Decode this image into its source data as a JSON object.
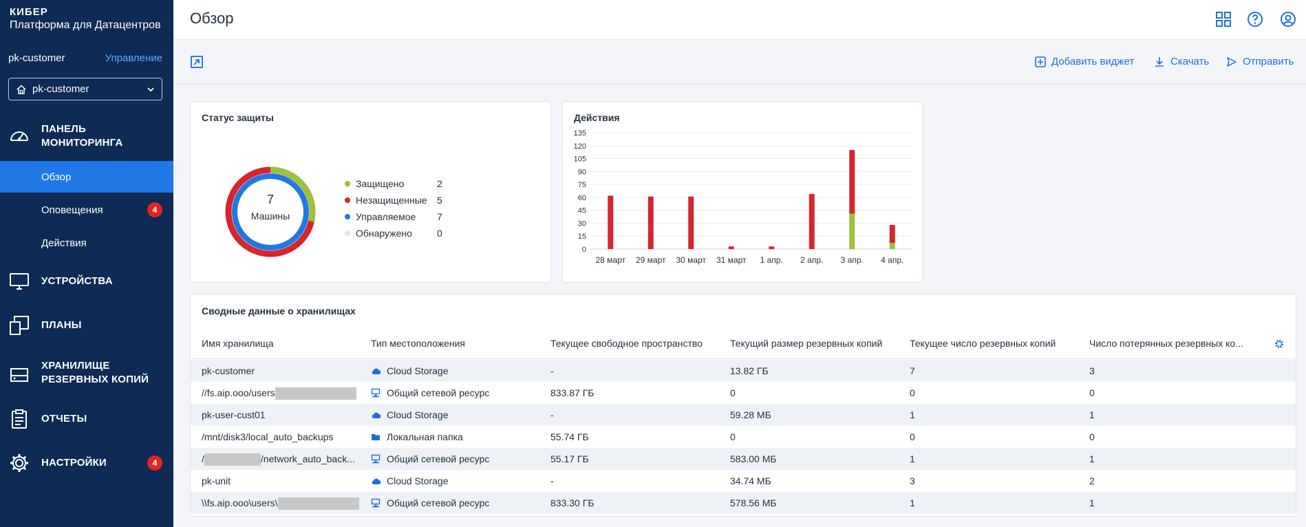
{
  "brand": {
    "top": "КИБЕР",
    "sub": "Платформа для Датацентров"
  },
  "tenant": {
    "name": "pk-customer",
    "manage": "Управление",
    "selected": "pk-customer"
  },
  "nav": {
    "dashboard": "ПАНЕЛЬ МОНИТОРИНГА",
    "overview": "Обзор",
    "alerts": "Оповещения",
    "alerts_badge": "4",
    "activities": "Действия",
    "devices": "УСТРОЙСТВА",
    "plans": "ПЛАНЫ",
    "storage": "ХРАНИЛИЩЕ РЕЗЕРВНЫХ КОПИЙ",
    "reports": "ОТЧЕТЫ",
    "settings": "НАСТРОЙКИ",
    "settings_badge": "4"
  },
  "header": {
    "title": "Обзор"
  },
  "toolbar": {
    "add_widget": "Добавить виджет",
    "download": "Скачать",
    "send": "Отправить"
  },
  "protection": {
    "title": "Статус защиты",
    "total": "7",
    "total_label": "Машины",
    "legend": [
      {
        "label": "Защищено",
        "value": "2",
        "color": "#9cc23a"
      },
      {
        "label": "Незащищенные",
        "value": "5",
        "color": "#d6252f"
      },
      {
        "label": "Управляемое",
        "value": "7",
        "color": "#1f78e6"
      },
      {
        "label": "Обнаружено",
        "value": "0",
        "color": "#dfe3ea"
      }
    ]
  },
  "activities": {
    "title": "Действия"
  },
  "chart_data": {
    "type": "bar",
    "categories": [
      "28 март",
      "29 март",
      "30 март",
      "31 март",
      "1 апр.",
      "2 апр.",
      "3 апр.",
      "4 апр."
    ],
    "series": [
      {
        "values": [
          0,
          0,
          0,
          0,
          0,
          0,
          41,
          7
        ],
        "color": "#9cc23a"
      },
      {
        "values": [
          62,
          61,
          61,
          3,
          3,
          64,
          74,
          21
        ],
        "color": "#d6252f"
      }
    ],
    "ylim": [
      0,
      135
    ],
    "yticks": [
      0,
      15,
      30,
      45,
      60,
      75,
      90,
      105,
      120,
      135
    ],
    "stacked": true,
    "grid": true
  },
  "storage_summary": {
    "title": "Сводные данные о хранилищах",
    "columns": [
      "Имя хранилища",
      "Тип местоположения",
      "Текущее свободное пространство",
      "Текущий размер резервных копий",
      "Текущее число резервных копий",
      "Число потерянных резервных ко..."
    ],
    "rows": [
      {
        "name": "pk-customer",
        "type": "Cloud Storage",
        "icon": "cloud-icon",
        "free": "-",
        "size": "13.82 ГБ",
        "count": "7",
        "lost": "3"
      },
      {
        "name": "//fs.aip.ooo/users",
        "type": "Общий сетевой ресурс",
        "icon": "network-share-icon",
        "free": "833.87 ГБ",
        "size": "0",
        "count": "0",
        "lost": "0"
      },
      {
        "name": "pk-user-cust01",
        "type": "Cloud Storage",
        "icon": "cloud-icon",
        "free": "-",
        "size": "59.28 МБ",
        "count": "1",
        "lost": "1"
      },
      {
        "name": "/mnt/disk3/local_auto_backups",
        "type": "Локальная папка",
        "icon": "folder-icon",
        "free": "55.74 ГБ",
        "size": "0",
        "count": "0",
        "lost": "0"
      },
      {
        "name_prefix": "/",
        "name": "/network_auto_back...",
        "type": "Общий сетевой ресурс",
        "icon": "network-share-icon",
        "free": "55.17 ГБ",
        "size": "583.00 МБ",
        "count": "1",
        "lost": "1"
      },
      {
        "name": "pk-unit",
        "type": "Cloud Storage",
        "icon": "cloud-icon",
        "free": "-",
        "size": "34.74 МБ",
        "count": "3",
        "lost": "2"
      },
      {
        "name": "\\\\fs.aip.ooo\\users\\",
        "type": "Общий сетевой ресурс",
        "icon": "network-share-icon",
        "free": "833.30 ГБ",
        "size": "578.56 МБ",
        "count": "1",
        "lost": "1"
      }
    ]
  }
}
